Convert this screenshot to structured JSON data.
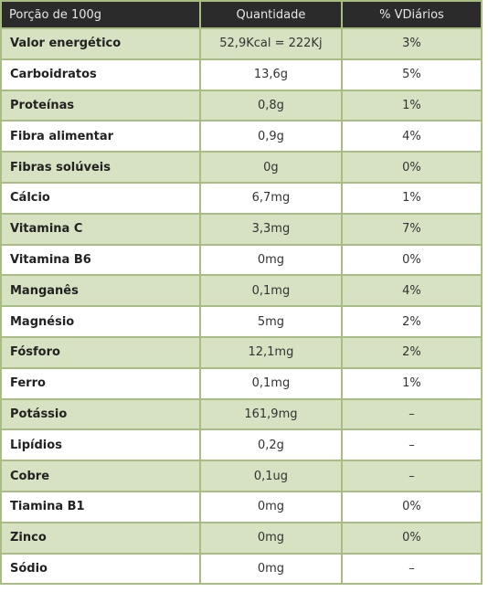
{
  "table": {
    "headers": [
      "Porção de 100g",
      "Quantidade",
      "% VDiários"
    ],
    "rows": [
      [
        "Valor energético",
        "52,9Kcal = 222Kj",
        "3%"
      ],
      [
        "Carboidratos",
        "13,6g",
        "5%"
      ],
      [
        "Proteínas",
        "0,8g",
        "1%"
      ],
      [
        "Fibra alimentar",
        "0,9g",
        "4%"
      ],
      [
        "Fibras solúveis",
        "0g",
        "0%"
      ],
      [
        "Cálcio",
        "6,7mg",
        "1%"
      ],
      [
        "Vitamina C",
        "3,3mg",
        "7%"
      ],
      [
        "Vitamina B6",
        "0mg",
        "0%"
      ],
      [
        "Manganês",
        "0,1mg",
        "4%"
      ],
      [
        "Magnésio",
        "5mg",
        "2%"
      ],
      [
        "Fósforo",
        "12,1mg",
        "2%"
      ],
      [
        "Ferro",
        "0,1mg",
        "1%"
      ],
      [
        "Potássio",
        "161,9mg",
        "–"
      ],
      [
        "Lipídios",
        "0,2g",
        "–"
      ],
      [
        "Cobre",
        "0,1ug",
        "–"
      ],
      [
        "Tiamina B1",
        "0mg",
        "0%"
      ],
      [
        "Zinco",
        "0mg",
        "0%"
      ],
      [
        "Sódio",
        "0mg",
        "–"
      ]
    ]
  },
  "colors": {
    "header_bg": "#2b2b2b",
    "header_text": "#e6e6e6",
    "row_alt_bg": "#d7e2c2",
    "row_bg": "#ffffff",
    "border": "#a7bd81"
  }
}
